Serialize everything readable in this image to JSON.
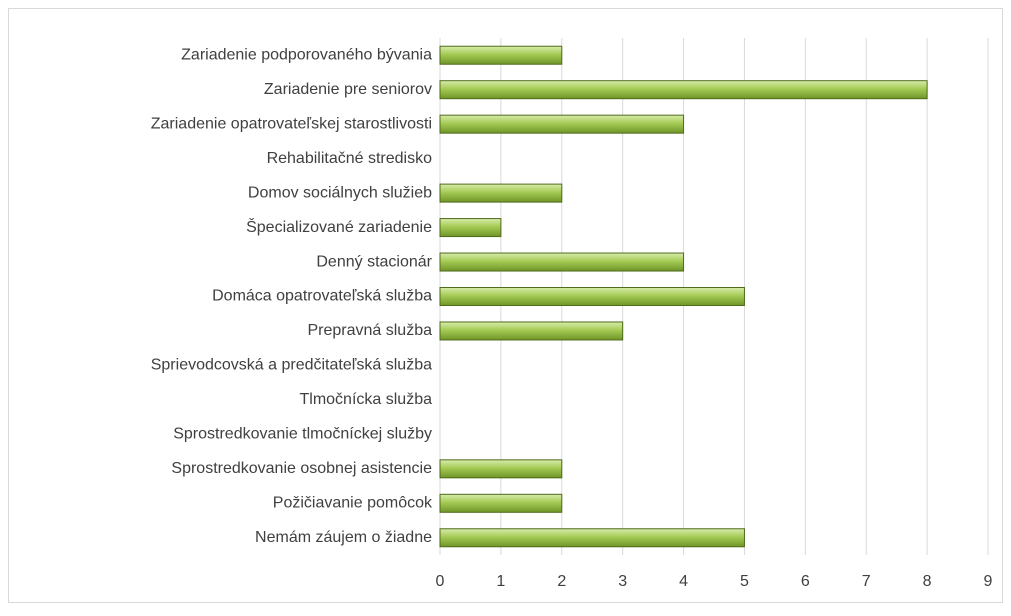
{
  "chart_data": {
    "type": "bar",
    "orientation": "horizontal",
    "categories": [
      "Zariadenie podporovaného bývania",
      "Zariadenie pre seniorov",
      "Zariadenie opatrovateľskej starostlivosti",
      "Rehabilitačné stredisko",
      "Domov sociálnych služieb",
      "Špecializované zariadenie",
      "Denný stacionár",
      "Domáca opatrovateľská služba",
      "Prepravná služba",
      "Sprievodcovská a predčitateľská služba",
      "Tlmočnícka služba",
      "Sprostredkovanie tlmočníckej služby",
      "Sprostredkovanie osobnej asistencie",
      "Požičiavanie pomôcok",
      "Nemám záujem o žiadne"
    ],
    "values": [
      2,
      8,
      4,
      0,
      2,
      1,
      4,
      5,
      3,
      0,
      0,
      0,
      2,
      2,
      5
    ],
    "color": "#9bc24a",
    "xlim": [
      0,
      9
    ],
    "xticks": [
      0,
      1,
      2,
      3,
      4,
      5,
      6,
      7,
      8,
      9
    ],
    "grid": true
  }
}
